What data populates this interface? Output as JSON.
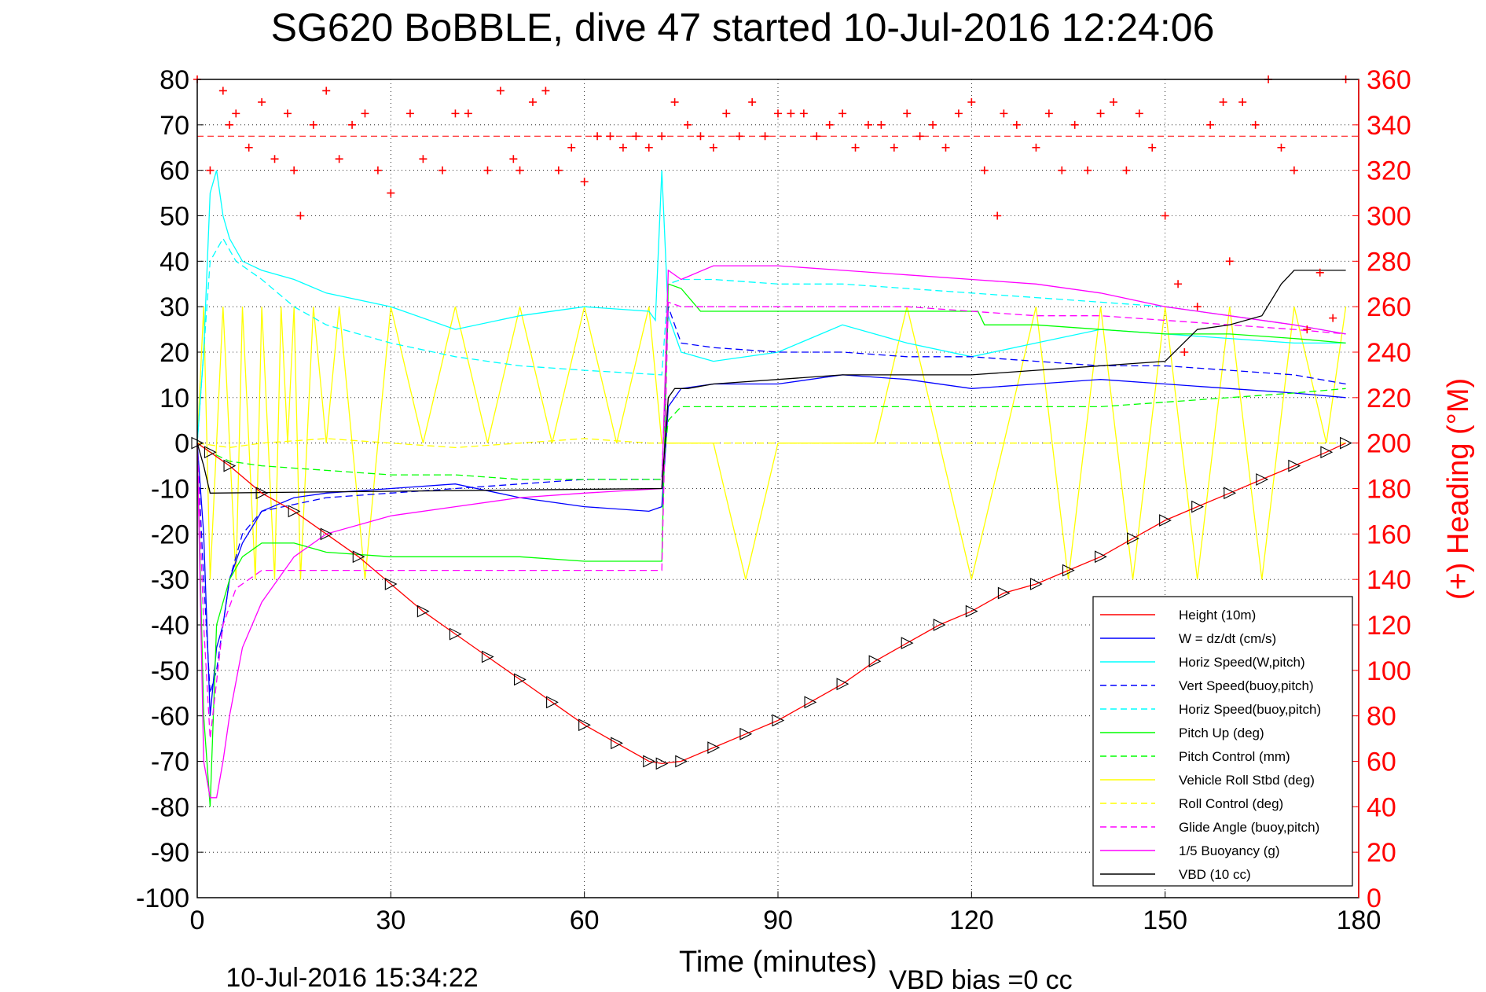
{
  "chart_data": {
    "type": "line",
    "title": "SG620 BoBBLE, dive 47 started 10-Jul-2016 12:24:06",
    "xlabel": "Time (minutes)",
    "ylabel_right": "(+) Heading (°M)",
    "footer_left": "10-Jul-2016 15:34:22",
    "footer_right": "VBD bias =0 cc",
    "xlim": [
      0,
      180
    ],
    "ylim": [
      -100,
      80
    ],
    "ylim_right": [
      0,
      360
    ],
    "grid": true,
    "legend_position": "bottom-right",
    "x_ticks": [
      "0",
      "30",
      "60",
      "90",
      "120",
      "150",
      "180"
    ],
    "y_ticks": [
      "80",
      "70",
      "60",
      "50",
      "40",
      "30",
      "20",
      "10",
      "0",
      "-10",
      "-20",
      "-30",
      "-40",
      "-50",
      "-60",
      "-70",
      "-80",
      "-90",
      "-100"
    ],
    "y_ticks_right": [
      "360",
      "340",
      "320",
      "300",
      "280",
      "260",
      "240",
      "220",
      "200",
      "180",
      "160",
      "140",
      "120",
      "100",
      "80",
      "60",
      "40",
      "20",
      "0"
    ],
    "heading_target": 335,
    "series": [
      {
        "name": "Height (10m)",
        "color": "#ff0000",
        "style": "solid",
        "x": [
          0,
          2,
          5,
          10,
          15,
          20,
          25,
          30,
          35,
          40,
          45,
          50,
          55,
          60,
          65,
          70,
          72,
          75,
          80,
          85,
          90,
          95,
          100,
          105,
          110,
          115,
          120,
          125,
          130,
          135,
          140,
          145,
          150,
          155,
          160,
          165,
          170,
          175,
          178
        ],
        "y": [
          0,
          -2,
          -5,
          -11,
          -15,
          -20,
          -25,
          -31,
          -37,
          -42,
          -47,
          -52,
          -57,
          -62,
          -66,
          -70,
          -70.5,
          -70,
          -67,
          -64,
          -61,
          -57,
          -53,
          -48,
          -44,
          -40,
          -37,
          -33,
          -31,
          -28,
          -25,
          -21,
          -17,
          -14,
          -11,
          -8,
          -5,
          -2,
          0
        ]
      },
      {
        "name": "W = dz/dt (cm/s)",
        "color": "#0000ff",
        "style": "solid",
        "x": [
          0,
          1,
          2,
          3,
          4,
          5,
          7,
          10,
          15,
          20,
          30,
          40,
          50,
          60,
          70,
          72,
          73,
          75,
          80,
          90,
          100,
          110,
          120,
          130,
          140,
          150,
          160,
          170,
          178
        ],
        "y": [
          0,
          -20,
          -60,
          -45,
          -40,
          -30,
          -22,
          -15,
          -12,
          -11,
          -10,
          -9,
          -12,
          -14,
          -15,
          -14,
          8,
          12,
          13,
          13,
          15,
          14,
          12,
          13,
          14,
          13,
          12,
          11,
          10
        ]
      },
      {
        "name": "Horiz Speed(W,pitch)",
        "color": "#00ffff",
        "style": "solid",
        "x": [
          0,
          1,
          2,
          3,
          4,
          5,
          7,
          10,
          15,
          20,
          30,
          40,
          50,
          60,
          70,
          71,
          72,
          73,
          75,
          80,
          90,
          100,
          110,
          120,
          130,
          140,
          150,
          160,
          170,
          178
        ],
        "y": [
          0,
          20,
          55,
          60,
          50,
          45,
          40,
          38,
          36,
          33,
          30,
          25,
          28,
          30,
          29,
          27,
          60,
          28,
          20,
          18,
          20,
          26,
          22,
          19,
          22,
          25,
          24,
          23,
          22,
          22
        ]
      },
      {
        "name": "Vert Speed(buoy,pitch)",
        "color": "#0000ff",
        "style": "dashed",
        "x": [
          0,
          1,
          2,
          3,
          4,
          5,
          7,
          10,
          20,
          30,
          40,
          50,
          60,
          72,
          73,
          75,
          80,
          90,
          100,
          110,
          120,
          130,
          140,
          150,
          160,
          170,
          178
        ],
        "y": [
          0,
          -30,
          -55,
          -50,
          -40,
          -30,
          -20,
          -15,
          -12,
          -11,
          -10,
          -9,
          -8,
          -8,
          30,
          22,
          21,
          20,
          20,
          19,
          19,
          18,
          17,
          17,
          16,
          15,
          13
        ]
      },
      {
        "name": "Horiz Speed(buoy,pitch)",
        "color": "#00ffff",
        "style": "dashed",
        "x": [
          0,
          2,
          4,
          6,
          10,
          15,
          20,
          30,
          40,
          50,
          60,
          72,
          73,
          75,
          80,
          90,
          100,
          110,
          120,
          130,
          140,
          150,
          160,
          170,
          178
        ],
        "y": [
          0,
          40,
          45,
          40,
          36,
          30,
          26,
          22,
          19,
          17,
          16,
          15,
          35,
          36,
          36,
          35,
          35,
          34,
          33,
          32,
          31,
          30,
          28,
          26,
          24
        ]
      },
      {
        "name": "Pitch Up (deg)",
        "color": "#00ff00",
        "style": "solid",
        "x": [
          0,
          1,
          2,
          3,
          5,
          7,
          10,
          15,
          20,
          30,
          40,
          50,
          60,
          70,
          72,
          73,
          75,
          78,
          90,
          100,
          110,
          121,
          122,
          130,
          140,
          150,
          160,
          170,
          178
        ],
        "y": [
          0,
          -60,
          -80,
          -40,
          -30,
          -25,
          -22,
          -22,
          -24,
          -25,
          -25,
          -25,
          -26,
          -26,
          -26,
          35,
          34,
          29,
          29,
          29,
          29,
          29,
          26,
          26,
          25,
          24,
          24,
          23,
          22
        ]
      },
      {
        "name": "Pitch Control (mm)",
        "color": "#00ff00",
        "style": "dashed",
        "x": [
          0,
          2,
          5,
          10,
          20,
          30,
          40,
          50,
          60,
          72,
          73,
          75,
          80,
          90,
          100,
          110,
          120,
          130,
          140,
          150,
          160,
          170,
          178
        ],
        "y": [
          0,
          -2,
          -4,
          -5,
          -6,
          -7,
          -7,
          -8,
          -8,
          -8,
          5,
          8,
          8,
          8,
          8,
          8,
          8,
          8,
          8,
          9,
          10,
          11,
          12
        ]
      },
      {
        "name": "Vehicle Roll Stbd (deg)",
        "color": "#ffff00",
        "style": "solid",
        "x": [
          0,
          1,
          2,
          3,
          4,
          5,
          6,
          7,
          8,
          9,
          10,
          11,
          12,
          13,
          14,
          15,
          16,
          17,
          18,
          20,
          22,
          24,
          26,
          30,
          35,
          40,
          45,
          50,
          55,
          60,
          65,
          70,
          72,
          75,
          80,
          85,
          90,
          95,
          100,
          105,
          110,
          115,
          120,
          125,
          130,
          135,
          140,
          145,
          150,
          155,
          160,
          165,
          170,
          175,
          178
        ],
        "y": [
          0,
          30,
          -30,
          0,
          30,
          0,
          -30,
          30,
          0,
          -30,
          30,
          0,
          -30,
          30,
          0,
          30,
          -30,
          0,
          30,
          0,
          30,
          0,
          -30,
          30,
          0,
          30,
          0,
          30,
          0,
          30,
          0,
          30,
          0,
          0,
          0,
          -30,
          0,
          0,
          0,
          0,
          30,
          0,
          -30,
          0,
          30,
          -30,
          30,
          -30,
          30,
          -30,
          30,
          -30,
          30,
          0,
          30
        ]
      },
      {
        "name": "Roll Control (deg)",
        "color": "#ffff00",
        "style": "dashed",
        "x": [
          0,
          5,
          10,
          20,
          30,
          40,
          50,
          60,
          70,
          72,
          75,
          80,
          90,
          100,
          110,
          120,
          130,
          140,
          150,
          160,
          170,
          178
        ],
        "y": [
          0,
          -1,
          0,
          1,
          0,
          -1,
          0,
          1,
          0,
          0,
          0,
          0,
          0,
          0,
          0,
          0,
          0,
          0,
          0,
          0,
          0,
          0
        ]
      },
      {
        "name": "Glide Angle (buoy,pitch)",
        "color": "#ff00ff",
        "style": "dashed",
        "x": [
          0,
          1,
          2,
          4,
          6,
          10,
          20,
          30,
          40,
          50,
          60,
          72,
          73,
          75,
          80,
          90,
          100,
          110,
          120,
          130,
          140,
          150,
          160,
          170,
          178
        ],
        "y": [
          0,
          -40,
          -65,
          -40,
          -32,
          -28,
          -28,
          -28,
          -28,
          -28,
          -28,
          -28,
          31,
          30,
          30,
          30,
          30,
          30,
          29,
          28,
          28,
          27,
          26,
          25,
          24
        ]
      },
      {
        "name": "1/5 Buoyancy (g)",
        "color": "#ff00ff",
        "style": "solid",
        "x": [
          0,
          1,
          2,
          3,
          4,
          5,
          7,
          10,
          15,
          20,
          30,
          40,
          50,
          60,
          72,
          73,
          75,
          80,
          90,
          100,
          110,
          120,
          130,
          140,
          150,
          160,
          170,
          178
        ],
        "y": [
          0,
          -70,
          -78,
          -78,
          -70,
          -60,
          -45,
          -35,
          -25,
          -20,
          -16,
          -14,
          -12,
          -11,
          -10,
          38,
          36,
          39,
          39,
          38,
          37,
          36,
          35,
          33,
          30,
          28,
          26,
          24
        ]
      },
      {
        "name": "VBD (10 cc)",
        "color": "#000000",
        "style": "solid",
        "x": [
          0,
          1,
          2,
          72,
          73,
          74,
          76,
          80,
          100,
          120,
          130,
          140,
          150,
          155,
          160,
          165,
          168,
          170,
          175,
          178
        ],
        "y": [
          0,
          -5,
          -11,
          -10,
          10,
          12,
          12,
          13,
          15,
          15,
          16,
          17,
          18,
          25,
          26,
          28,
          35,
          38,
          38,
          38
        ]
      },
      {
        "name": "Heading",
        "color": "#ff0000",
        "style": "markers",
        "axis": "right",
        "x": [
          0,
          2,
          4,
          5,
          6,
          8,
          10,
          12,
          14,
          15,
          16,
          18,
          20,
          22,
          24,
          26,
          28,
          30,
          33,
          35,
          38,
          40,
          42,
          45,
          47,
          49,
          50,
          52,
          54,
          56,
          58,
          60,
          62,
          64,
          66,
          68,
          70,
          72,
          74,
          76,
          78,
          80,
          82,
          84,
          86,
          88,
          90,
          92,
          94,
          96,
          98,
          100,
          102,
          104,
          106,
          108,
          110,
          112,
          114,
          116,
          118,
          120,
          122,
          124,
          125,
          127,
          130,
          132,
          134,
          136,
          138,
          140,
          142,
          144,
          146,
          148,
          150,
          152,
          153,
          155,
          157,
          159,
          160,
          162,
          164,
          166,
          168,
          170,
          172,
          174,
          176,
          178
        ],
        "y": [
          360,
          320,
          355,
          340,
          345,
          330,
          350,
          325,
          345,
          320,
          300,
          340,
          355,
          325,
          340,
          345,
          320,
          310,
          345,
          325,
          320,
          345,
          345,
          320,
          355,
          325,
          320,
          350,
          355,
          320,
          330,
          315,
          335,
          335,
          330,
          335,
          330,
          335,
          350,
          340,
          335,
          330,
          345,
          335,
          350,
          335,
          345,
          345,
          345,
          335,
          340,
          345,
          330,
          340,
          340,
          330,
          345,
          335,
          340,
          330,
          345,
          350,
          320,
          300,
          345,
          340,
          330,
          345,
          320,
          340,
          320,
          345,
          350,
          320,
          345,
          330,
          300,
          270,
          240,
          260,
          340,
          350,
          280,
          350,
          340,
          360,
          330,
          320,
          250,
          275,
          255,
          360
        ]
      }
    ]
  }
}
